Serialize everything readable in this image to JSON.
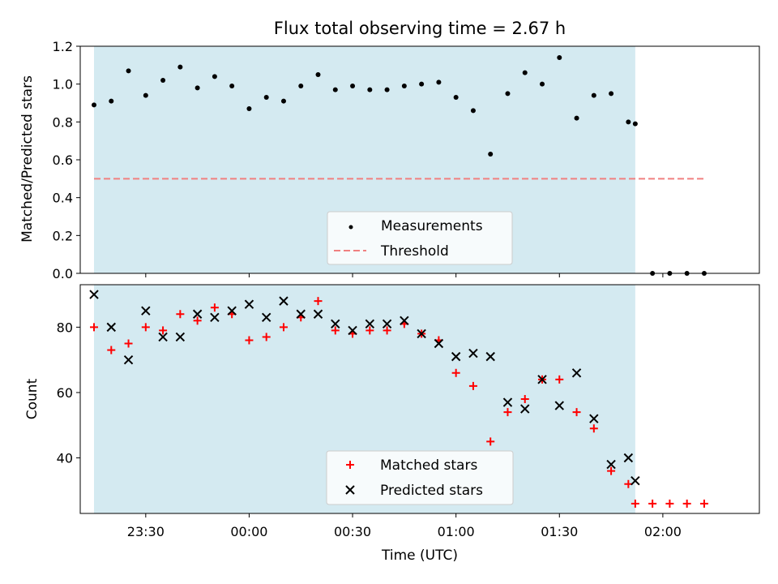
{
  "chart_data": [
    {
      "panel": "top",
      "type": "scatter",
      "title": "Flux total observing time = 2.67 h",
      "xlabel": "",
      "ylabel": "Matched/Predicted stars",
      "ylim": [
        0,
        1.2
      ],
      "yticks": [
        "0.0",
        "0.2",
        "0.4",
        "0.6",
        "0.8",
        "1.0",
        "1.2"
      ],
      "xlim": [
        "23:11",
        "02:28"
      ],
      "grid": false,
      "legend": {
        "placement": "lower-center"
      },
      "shaded_interval": {
        "x_start": "23:15",
        "x_end": "01:52",
        "color": "#d4eaf1"
      },
      "threshold": {
        "name": "Threshold",
        "value": 0.5,
        "x_start": "23:15",
        "x_end": "02:12",
        "color": "#f08080",
        "style": "dashed"
      },
      "series": [
        {
          "name": "Measurements",
          "marker": "dot",
          "color": "#000000",
          "x": [
            "23:15",
            "23:20",
            "23:25",
            "23:30",
            "23:35",
            "23:40",
            "23:45",
            "23:50",
            "23:55",
            "00:00",
            "00:05",
            "00:10",
            "00:15",
            "00:20",
            "00:25",
            "00:30",
            "00:35",
            "00:40",
            "00:45",
            "00:50",
            "00:55",
            "01:00",
            "01:05",
            "01:10",
            "01:15",
            "01:20",
            "01:25",
            "01:30",
            "01:35",
            "01:40",
            "01:45",
            "01:50",
            "01:52",
            "01:57",
            "02:02",
            "02:07",
            "02:12"
          ],
          "values": [
            0.89,
            0.91,
            1.07,
            0.94,
            1.02,
            1.09,
            0.98,
            1.04,
            0.99,
            0.87,
            0.93,
            0.91,
            0.99,
            1.05,
            0.97,
            0.99,
            0.97,
            0.97,
            0.99,
            1.0,
            1.01,
            0.93,
            0.86,
            0.63,
            0.95,
            1.06,
            1.0,
            1.14,
            0.82,
            0.94,
            0.95,
            0.8,
            0.79,
            0.0,
            0.0,
            0.0,
            0.0
          ]
        }
      ]
    },
    {
      "panel": "bottom",
      "type": "scatter",
      "title": "",
      "xlabel": "Time (UTC)",
      "ylabel": "Count",
      "ylim": [
        23,
        93
      ],
      "yticks": [
        "40",
        "60",
        "80"
      ],
      "xticks": [
        "23:30",
        "00:00",
        "00:30",
        "01:00",
        "01:30",
        "02:00"
      ],
      "xlim": [
        "23:11",
        "02:28"
      ],
      "grid": false,
      "legend": {
        "placement": "lower-center"
      },
      "shaded_interval": {
        "x_start": "23:15",
        "x_end": "01:52",
        "color": "#d4eaf1"
      },
      "series": [
        {
          "name": "Matched stars",
          "marker": "plus",
          "color": "#ff0000",
          "x": [
            "23:15",
            "23:20",
            "23:25",
            "23:30",
            "23:35",
            "23:40",
            "23:45",
            "23:50",
            "23:55",
            "00:00",
            "00:05",
            "00:10",
            "00:15",
            "00:20",
            "00:25",
            "00:30",
            "00:35",
            "00:40",
            "00:45",
            "00:50",
            "00:55",
            "01:00",
            "01:05",
            "01:10",
            "01:15",
            "01:20",
            "01:25",
            "01:30",
            "01:35",
            "01:40",
            "01:45",
            "01:50",
            "01:52",
            "01:57",
            "02:02",
            "02:07",
            "02:12"
          ],
          "values": [
            80,
            73,
            75,
            80,
            79,
            84,
            82,
            86,
            84,
            76,
            77,
            80,
            83,
            88,
            79,
            78,
            79,
            79,
            81,
            78,
            76,
            66,
            62,
            45,
            54,
            58,
            64,
            64,
            54,
            49,
            36,
            32,
            26,
            26,
            26,
            26,
            26
          ]
        },
        {
          "name": "Predicted stars",
          "marker": "x",
          "color": "#000000",
          "x": [
            "23:15",
            "23:20",
            "23:25",
            "23:30",
            "23:35",
            "23:40",
            "23:45",
            "23:50",
            "23:55",
            "00:00",
            "00:05",
            "00:10",
            "00:15",
            "00:20",
            "00:25",
            "00:30",
            "00:35",
            "00:40",
            "00:45",
            "00:50",
            "00:55",
            "01:00",
            "01:05",
            "01:10",
            "01:15",
            "01:20",
            "01:25",
            "01:30",
            "01:35",
            "01:40",
            "01:45",
            "01:50",
            "01:52"
          ],
          "values": [
            90,
            80,
            70,
            85,
            77,
            77,
            84,
            83,
            85,
            87,
            83,
            88,
            84,
            84,
            81,
            79,
            81,
            81,
            82,
            78,
            75,
            71,
            72,
            71,
            57,
            55,
            64,
            56,
            66,
            52,
            38,
            40,
            33
          ]
        }
      ]
    }
  ]
}
